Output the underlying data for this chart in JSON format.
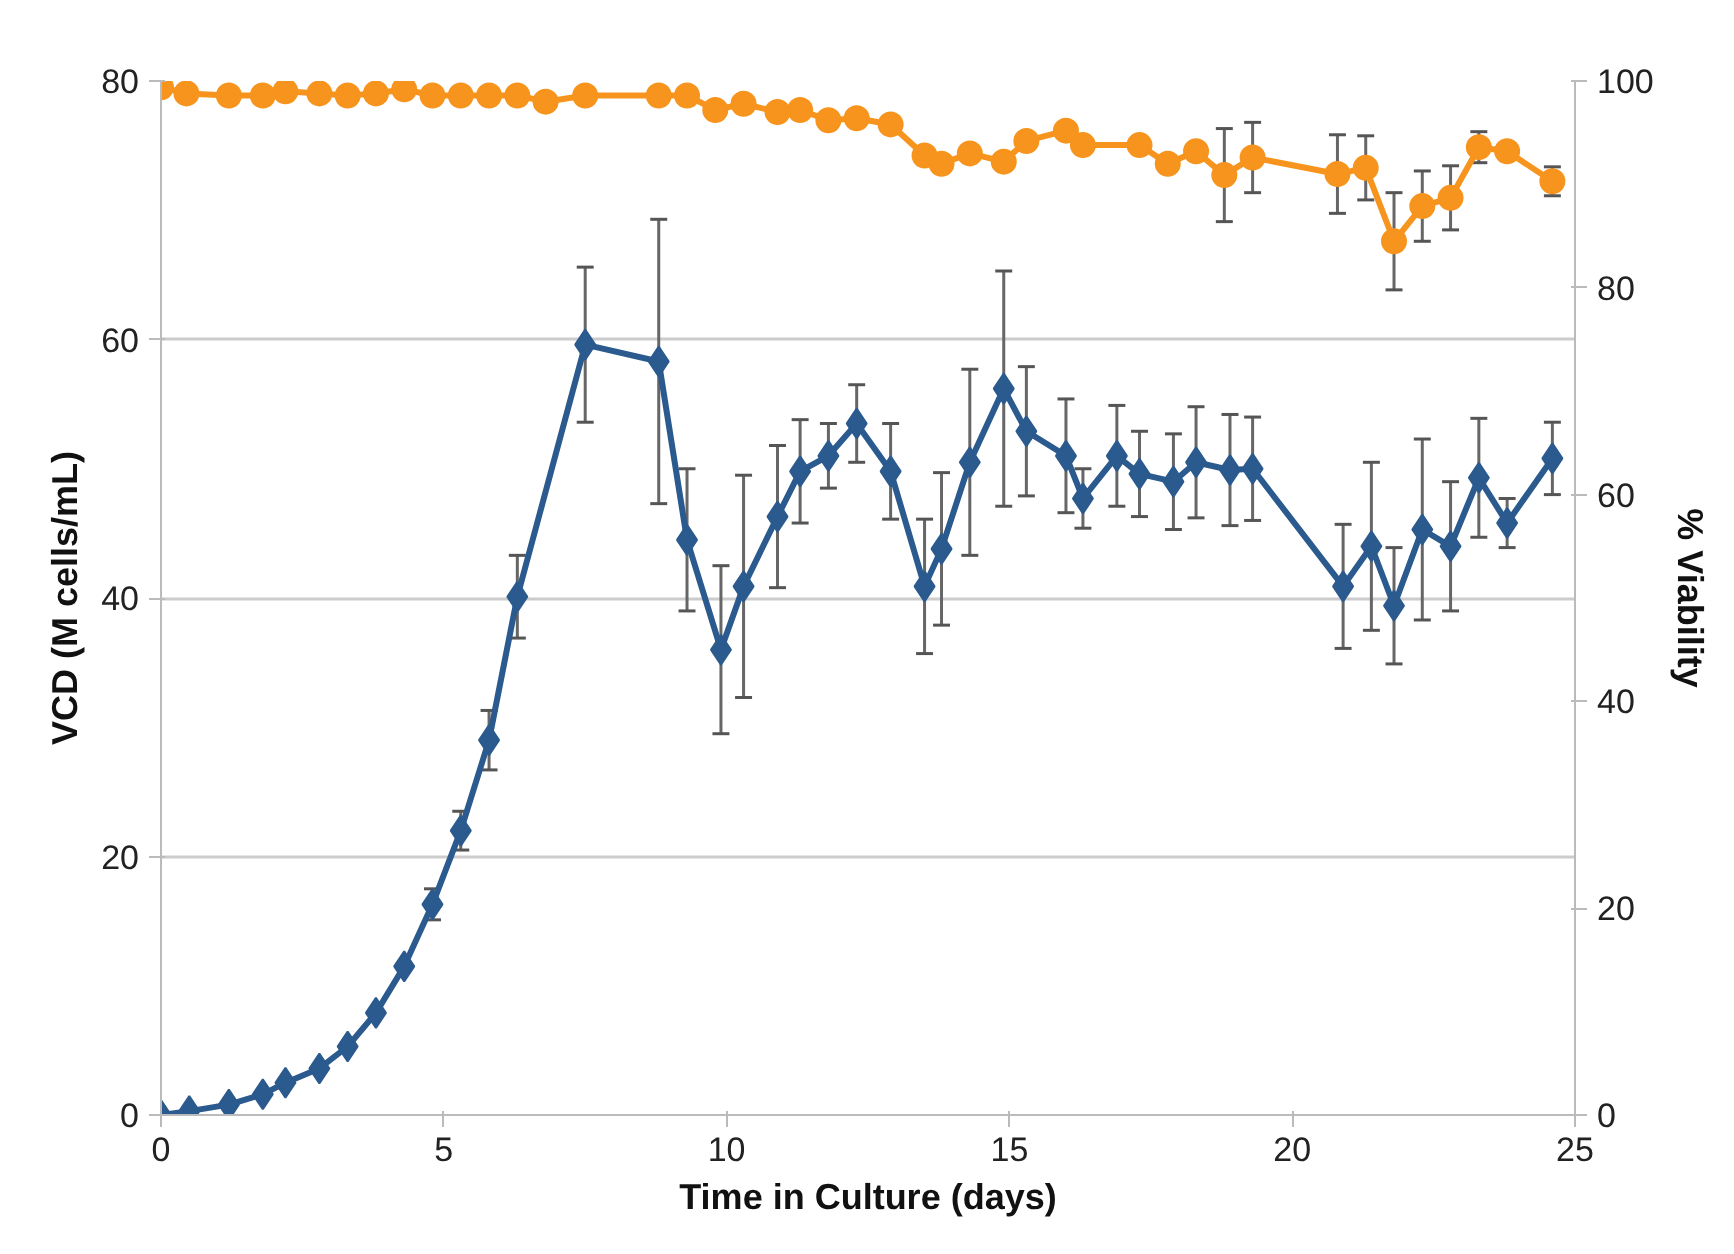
{
  "chart_data": {
    "type": "line",
    "xlabel": "Time in Culture (days)",
    "ylabel": "VCD (M cells/mL)",
    "y2label": "% Viability",
    "xlim": [
      0,
      25
    ],
    "xticks": [
      0,
      5,
      10,
      15,
      20,
      25
    ],
    "ylim": [
      0,
      80
    ],
    "yticks": [
      0,
      20,
      40,
      60,
      80
    ],
    "y2lim": [
      0,
      100
    ],
    "y2ticks": [
      0,
      20,
      40,
      60,
      80,
      100
    ],
    "grid": "y",
    "line_style": "solid",
    "series": [
      {
        "color": "#2b5a8e",
        "marker": "diamond",
        "x": [
          0,
          0.5,
          1.2,
          1.8,
          2.2,
          2.8,
          3.3,
          3.8,
          4.3,
          4.8,
          5.3,
          5.8,
          6.3,
          7.5,
          8.8,
          9.3,
          9.9,
          10.3,
          10.9,
          11.3,
          11.8,
          12.3,
          12.9,
          13.5,
          13.8,
          14.3,
          14.9,
          15.3,
          16.0,
          16.3,
          16.9,
          17.3,
          17.9,
          18.3,
          18.9,
          19.3,
          20.9,
          21.4,
          21.8,
          22.3,
          22.8,
          23.3,
          23.8,
          24.6
        ],
        "values": [
          0,
          0.3,
          0.8,
          1.6,
          2.5,
          3.6,
          5.3,
          7.9,
          11.5,
          16.3,
          22,
          29,
          40.1,
          59.6,
          58.3,
          44.5,
          36,
          40.9,
          46.3,
          49.8,
          51,
          53.5,
          49.8,
          40.9,
          43.8,
          50.5,
          56.2,
          52.9,
          51,
          47.7,
          51,
          49.6,
          49,
          50.5,
          49.9,
          50,
          40.9,
          44,
          39.4,
          45.3,
          44,
          49.3,
          45.8,
          50.8
        ],
        "errors": [
          null,
          null,
          null,
          null,
          null,
          null,
          null,
          null,
          null,
          1.2,
          1.5,
          2.3,
          3.2,
          6,
          11,
          5.5,
          6.5,
          8.6,
          5.5,
          4,
          2.5,
          3,
          3.7,
          5.2,
          5.9,
          7.2,
          9.1,
          5,
          4.4,
          2.3,
          3.9,
          3.3,
          3.7,
          4.3,
          4.3,
          4,
          4.8,
          6.5,
          4.5,
          7,
          5,
          4.6,
          1.9,
          2.8
        ]
      },
      {
        "color": "#f7941d",
        "marker": "circle",
        "axis": "y2",
        "x": [
          0,
          0.45,
          1.2,
          1.8,
          2.2,
          2.8,
          3.3,
          3.8,
          4.3,
          4.8,
          5.3,
          5.8,
          6.3,
          6.8,
          7.5,
          8.8,
          9.3,
          9.8,
          10.3,
          10.9,
          11.3,
          11.8,
          12.3,
          12.9,
          13.5,
          13.8,
          14.3,
          14.9,
          15.3,
          16.0,
          16.3,
          17.3,
          17.8,
          18.3,
          18.8,
          19.3,
          20.8,
          21.3,
          21.8,
          22.3,
          22.8,
          23.3,
          23.8,
          24.6
        ],
        "values": [
          99.4,
          98.8,
          98.6,
          98.6,
          99,
          98.8,
          98.6,
          98.8,
          99.2,
          98.6,
          98.6,
          98.6,
          98.6,
          98,
          98.6,
          98.6,
          98.6,
          97.2,
          97.8,
          97,
          97.2,
          96.2,
          96.4,
          95.8,
          92.8,
          92,
          93,
          92.2,
          94.2,
          95.2,
          93.8,
          93.8,
          92,
          93.2,
          90.9,
          92.6,
          91,
          91.6,
          84.5,
          87.9,
          88.7,
          93.6,
          93.2,
          90.3
        ],
        "errors": [
          null,
          null,
          null,
          null,
          null,
          null,
          null,
          null,
          null,
          null,
          null,
          null,
          null,
          null,
          null,
          null,
          null,
          null,
          null,
          null,
          null,
          null,
          null,
          null,
          null,
          null,
          null,
          null,
          null,
          null,
          null,
          null,
          null,
          null,
          4.5,
          3.4,
          3.8,
          3.1,
          4.7,
          3.4,
          3.1,
          1.5,
          null,
          1.4
        ]
      }
    ]
  }
}
